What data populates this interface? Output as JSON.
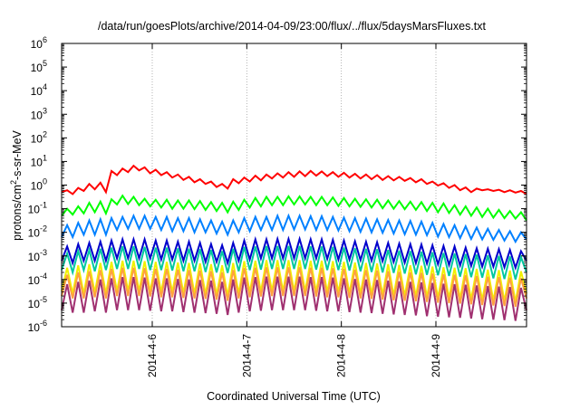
{
  "chart_data": {
    "type": "line",
    "title": "/data/run/goesPlots/archive/2014-04-09/23:00/flux/../flux/5daysMarsFluxes.txt",
    "xlabel": "Coordinated Universal Time (UTC)",
    "ylabel": "protons/cm²-s-sr-MeV",
    "ylabel_parts": {
      "pre": "protons/cm",
      "sup": "2",
      "post": "-s-sr-MeV"
    },
    "yscale": "log",
    "ylim": [
      1e-06,
      1000000.0
    ],
    "y_ticks": [
      {
        "base": "10",
        "exp": "-6"
      },
      {
        "base": "10",
        "exp": "-5"
      },
      {
        "base": "10",
        "exp": "-4"
      },
      {
        "base": "10",
        "exp": "-3"
      },
      {
        "base": "10",
        "exp": "-2"
      },
      {
        "base": "10",
        "exp": "-1"
      },
      {
        "base": "10",
        "exp": "0"
      },
      {
        "base": "10",
        "exp": "1"
      },
      {
        "base": "10",
        "exp": "2"
      },
      {
        "base": "10",
        "exp": "3"
      },
      {
        "base": "10",
        "exp": "4"
      },
      {
        "base": "10",
        "exp": "5"
      },
      {
        "base": "10",
        "exp": "6"
      }
    ],
    "xlim": [
      "2014-04-05 01:00",
      "2014-04-09 23:00"
    ],
    "x_ticks": [
      "2014-4-6",
      "2014-4-7",
      "2014-4-8",
      "2014-4-9"
    ],
    "grid": true,
    "series": [
      {
        "color": "#ff0000",
        "log_values": [
          -0.3,
          -0.22,
          -0.38,
          -0.12,
          -0.25,
          0.05,
          -0.18,
          0.1,
          -0.3,
          0.6,
          0.42,
          0.7,
          0.55,
          0.82,
          0.62,
          0.75,
          0.5,
          0.65,
          0.42,
          0.55,
          0.32,
          0.45,
          0.22,
          0.35,
          0.12,
          0.25,
          0.05,
          0.15,
          -0.08,
          0.05,
          -0.15,
          0.25,
          0.08,
          0.32,
          0.15,
          0.4,
          0.2,
          0.45,
          0.28,
          0.5,
          0.32,
          0.55,
          0.35,
          0.58,
          0.38,
          0.6,
          0.4,
          0.58,
          0.38,
          0.55,
          0.35,
          0.52,
          0.32,
          0.48,
          0.28,
          0.45,
          0.25,
          0.42,
          0.22,
          0.38,
          0.2,
          0.35,
          0.18,
          0.3,
          0.12,
          0.25,
          0.05,
          0.15,
          -0.02,
          0.08,
          -0.12,
          0.0,
          -0.22,
          -0.1,
          -0.3,
          -0.15,
          -0.22,
          -0.18,
          -0.25,
          -0.2,
          -0.3,
          -0.22,
          -0.32,
          -0.25,
          -0.38
        ]
      },
      {
        "color": "#00ff00",
        "log_values": [
          -1.3,
          -1.0,
          -1.25,
          -0.9,
          -1.2,
          -0.75,
          -1.15,
          -0.7,
          -1.2,
          -0.6,
          -0.82,
          -0.45,
          -0.8,
          -0.5,
          -0.85,
          -0.58,
          -0.9,
          -0.62,
          -0.95,
          -0.62,
          -1.0,
          -0.65,
          -1.0,
          -0.65,
          -1.02,
          -0.68,
          -1.05,
          -0.72,
          -1.1,
          -0.75,
          -1.15,
          -0.7,
          -1.05,
          -0.62,
          -0.95,
          -0.55,
          -0.9,
          -0.5,
          -0.85,
          -0.5,
          -0.85,
          -0.48,
          -0.82,
          -0.48,
          -0.82,
          -0.5,
          -0.85,
          -0.5,
          -0.85,
          -0.52,
          -0.88,
          -0.55,
          -0.9,
          -0.58,
          -0.92,
          -0.6,
          -0.95,
          -0.62,
          -0.98,
          -0.65,
          -1.0,
          -0.68,
          -1.02,
          -0.7,
          -1.05,
          -0.72,
          -1.1,
          -0.75,
          -1.15,
          -0.78,
          -1.18,
          -0.85,
          -1.25,
          -0.9,
          -1.3,
          -0.95,
          -1.35,
          -1.0,
          -1.38,
          -1.05,
          -1.4,
          -1.1,
          -1.42,
          -1.15,
          -1.5
        ]
      },
      {
        "color": "#0080ff",
        "log_values": [
          -2.2,
          -1.7,
          -2.2,
          -1.6,
          -2.1,
          -1.5,
          -2.1,
          -1.45,
          -2.1,
          -1.4,
          -1.9,
          -1.35,
          -1.85,
          -1.3,
          -1.85,
          -1.3,
          -1.85,
          -1.35,
          -1.9,
          -1.35,
          -1.95,
          -1.4,
          -1.95,
          -1.4,
          -2.0,
          -1.45,
          -2.0,
          -1.5,
          -2.05,
          -1.55,
          -2.1,
          -1.5,
          -2.0,
          -1.4,
          -1.95,
          -1.35,
          -1.9,
          -1.35,
          -1.9,
          -1.3,
          -1.9,
          -1.3,
          -1.88,
          -1.3,
          -1.88,
          -1.32,
          -1.9,
          -1.32,
          -1.9,
          -1.35,
          -1.92,
          -1.38,
          -1.95,
          -1.4,
          -1.98,
          -1.42,
          -2.0,
          -1.45,
          -2.02,
          -1.48,
          -2.05,
          -1.5,
          -2.08,
          -1.52,
          -2.1,
          -1.55,
          -2.12,
          -1.6,
          -2.18,
          -1.65,
          -2.2,
          -1.7,
          -2.25,
          -1.75,
          -2.28,
          -1.8,
          -2.3,
          -1.85,
          -2.32,
          -1.9,
          -2.35,
          -1.95,
          -2.4,
          -2.0,
          -2.3
        ]
      },
      {
        "color": "#0000cc",
        "log_values": [
          -3.2,
          -2.6,
          -3.3,
          -2.5,
          -3.2,
          -2.45,
          -3.2,
          -2.4,
          -3.2,
          -2.35,
          -3.1,
          -2.3,
          -3.1,
          -2.3,
          -3.1,
          -2.3,
          -3.1,
          -2.35,
          -3.15,
          -2.35,
          -3.15,
          -2.4,
          -3.2,
          -2.4,
          -3.2,
          -2.45,
          -3.25,
          -2.5,
          -3.25,
          -2.55,
          -3.3,
          -2.45,
          -3.2,
          -2.35,
          -3.15,
          -2.3,
          -3.1,
          -2.3,
          -3.1,
          -2.28,
          -3.1,
          -2.28,
          -3.1,
          -2.28,
          -3.1,
          -2.3,
          -3.1,
          -2.3,
          -3.12,
          -2.32,
          -3.15,
          -2.35,
          -3.15,
          -2.38,
          -3.18,
          -2.4,
          -3.2,
          -2.42,
          -3.22,
          -2.45,
          -3.25,
          -2.48,
          -3.28,
          -2.5,
          -3.3,
          -2.52,
          -3.32,
          -2.55,
          -3.35,
          -2.58,
          -3.38,
          -2.6,
          -3.4,
          -2.65,
          -3.42,
          -2.68,
          -3.45,
          -2.7,
          -3.45,
          -2.72,
          -3.48,
          -2.75,
          -3.5,
          -2.8,
          -3.2
        ]
      },
      {
        "color": "#00c8a0",
        "log_values": [
          -3.6,
          -2.9,
          -3.7,
          -2.8,
          -3.6,
          -2.75,
          -3.65,
          -2.7,
          -3.6,
          -2.65,
          -3.55,
          -2.6,
          -3.55,
          -2.6,
          -3.55,
          -2.62,
          -3.6,
          -2.65,
          -3.6,
          -2.65,
          -3.62,
          -2.68,
          -3.65,
          -2.7,
          -3.65,
          -2.72,
          -3.68,
          -2.75,
          -3.7,
          -2.8,
          -3.72,
          -2.7,
          -3.65,
          -2.62,
          -3.6,
          -2.6,
          -3.58,
          -2.58,
          -3.55,
          -2.58,
          -3.55,
          -2.58,
          -3.55,
          -2.58,
          -3.55,
          -2.6,
          -3.58,
          -2.6,
          -3.6,
          -2.62,
          -3.6,
          -2.65,
          -3.62,
          -2.68,
          -3.65,
          -2.7,
          -3.68,
          -2.72,
          -3.7,
          -2.75,
          -3.72,
          -2.78,
          -3.75,
          -2.8,
          -3.78,
          -2.82,
          -3.8,
          -2.85,
          -3.82,
          -2.88,
          -3.85,
          -2.9,
          -3.88,
          -2.92,
          -3.9,
          -2.95,
          -3.92,
          -2.98,
          -3.95,
          -3.0,
          -3.98,
          -3.02,
          -4.0,
          -3.05,
          -3.7
        ]
      },
      {
        "color": "#f0f000",
        "log_values": [
          -4.5,
          -3.5,
          -4.6,
          -3.4,
          -4.6,
          -3.35,
          -4.55,
          -3.3,
          -4.6,
          -3.25,
          -4.5,
          -3.2,
          -4.5,
          -3.2,
          -4.5,
          -3.22,
          -4.52,
          -3.25,
          -4.55,
          -3.25,
          -4.55,
          -3.28,
          -4.58,
          -3.3,
          -4.6,
          -3.32,
          -4.62,
          -3.35,
          -4.65,
          -3.4,
          -4.7,
          -3.3,
          -4.6,
          -3.22,
          -4.55,
          -3.2,
          -4.52,
          -3.18,
          -4.5,
          -3.18,
          -4.5,
          -3.18,
          -4.5,
          -3.18,
          -4.5,
          -3.2,
          -4.52,
          -3.2,
          -4.55,
          -3.22,
          -4.55,
          -3.25,
          -4.58,
          -3.28,
          -4.6,
          -3.3,
          -4.62,
          -3.32,
          -4.65,
          -3.35,
          -4.68,
          -3.38,
          -4.7,
          -3.4,
          -4.72,
          -3.42,
          -4.75,
          -3.45,
          -4.78,
          -3.48,
          -4.8,
          -3.5,
          -4.82,
          -3.52,
          -4.85,
          -3.55,
          -4.88,
          -3.58,
          -4.9,
          -3.6,
          -4.92,
          -3.62,
          -4.95,
          -3.65,
          -4.6
        ]
      },
      {
        "color": "#ffa040",
        "log_values": [
          -4.7,
          -3.8,
          -4.8,
          -3.7,
          -4.8,
          -3.65,
          -4.75,
          -3.6,
          -4.8,
          -3.55,
          -4.7,
          -3.5,
          -4.7,
          -3.5,
          -4.7,
          -3.52,
          -4.72,
          -3.55,
          -4.75,
          -3.55,
          -4.75,
          -3.58,
          -4.78,
          -3.6,
          -4.8,
          -3.62,
          -4.82,
          -3.65,
          -4.85,
          -3.7,
          -4.9,
          -3.6,
          -4.8,
          -3.52,
          -4.75,
          -3.5,
          -4.72,
          -3.48,
          -4.7,
          -3.48,
          -4.7,
          -3.48,
          -4.7,
          -3.48,
          -4.7,
          -3.5,
          -4.72,
          -3.5,
          -4.75,
          -3.52,
          -4.75,
          -3.55,
          -4.78,
          -3.58,
          -4.8,
          -3.6,
          -4.82,
          -3.62,
          -4.85,
          -3.65,
          -4.88,
          -3.68,
          -4.9,
          -3.7,
          -4.92,
          -3.72,
          -4.95,
          -3.75,
          -4.98,
          -3.78,
          -5.0,
          -3.8,
          -5.02,
          -3.82,
          -5.05,
          -3.85,
          -5.08,
          -3.88,
          -5.1,
          -3.9,
          -5.12,
          -3.92,
          -5.15,
          -3.95,
          -4.8
        ]
      },
      {
        "color": "#a03070",
        "log_values": [
          -5.3,
          -4.2,
          -5.4,
          -4.1,
          -5.4,
          -4.05,
          -5.35,
          -4.0,
          -5.4,
          -3.95,
          -5.3,
          -3.9,
          -5.3,
          -3.9,
          -5.3,
          -3.92,
          -5.32,
          -3.95,
          -5.35,
          -3.95,
          -5.35,
          -3.98,
          -5.38,
          -4.0,
          -5.4,
          -4.02,
          -5.42,
          -4.05,
          -5.45,
          -4.1,
          -5.5,
          -4.0,
          -5.4,
          -3.92,
          -5.35,
          -3.9,
          -5.32,
          -3.88,
          -5.3,
          -3.88,
          -5.3,
          -3.88,
          -5.3,
          -3.88,
          -5.3,
          -3.9,
          -5.32,
          -3.9,
          -5.35,
          -3.92,
          -5.35,
          -3.95,
          -5.38,
          -3.98,
          -5.4,
          -4.0,
          -5.42,
          -4.02,
          -5.45,
          -4.05,
          -5.48,
          -4.08,
          -5.5,
          -4.1,
          -5.52,
          -4.12,
          -5.55,
          -4.15,
          -5.58,
          -4.18,
          -5.6,
          -4.2,
          -5.62,
          -4.22,
          -5.65,
          -4.25,
          -5.68,
          -4.28,
          -5.7,
          -4.3,
          -5.72,
          -4.32,
          -5.75,
          -4.35,
          -5.3
        ]
      }
    ]
  }
}
